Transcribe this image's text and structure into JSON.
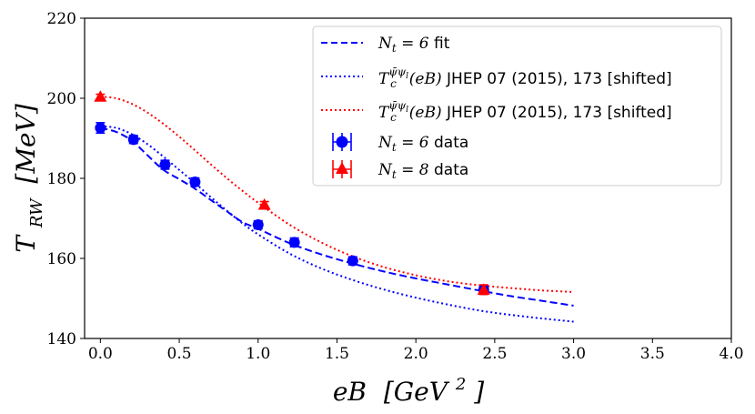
{
  "chart_data": {
    "type": "line",
    "title": "",
    "xlabel": "eB [GeV²]",
    "ylabel": "T_RW [MeV]",
    "xlim": [
      -0.1,
      4.0
    ],
    "ylim": [
      140,
      220
    ],
    "xticks": [
      0.0,
      0.5,
      1.0,
      1.5,
      2.0,
      2.5,
      3.0,
      3.5,
      4.0
    ],
    "xtick_labels": [
      "0.0",
      "0.5",
      "1.0",
      "1.5",
      "2.0",
      "2.5",
      "3.0",
      "3.5",
      "4.0"
    ],
    "yticks": [
      140,
      160,
      180,
      200,
      220
    ],
    "ytick_labels": [
      "140",
      "160",
      "180",
      "200",
      "220"
    ],
    "legend_position": "top-right",
    "series": [
      {
        "name": "Nt = 6 fit",
        "kind": "line",
        "style": "dashed",
        "color": "#0000ff",
        "x": [
          0.0,
          0.1,
          0.2,
          0.3,
          0.4,
          0.5,
          0.6,
          0.7,
          0.8,
          0.9,
          1.0,
          1.2,
          1.4,
          1.6,
          1.8,
          2.0,
          2.2,
          2.4,
          2.6,
          2.8,
          3.0
        ],
        "y": [
          192.6,
          191.6,
          189.4,
          185.7,
          182.1,
          179.8,
          177.4,
          174.6,
          171.8,
          169.1,
          167.4,
          163.8,
          161.0,
          158.7,
          156.7,
          155.0,
          153.5,
          152.0,
          150.6,
          149.4,
          148.2
        ]
      },
      {
        "name": "Tc(eB) JHEP 07 (2015), 173 [shifted]",
        "kind": "line",
        "style": "dotted",
        "color": "#0000ff",
        "x": [
          0.0,
          0.1,
          0.2,
          0.3,
          0.4,
          0.5,
          0.6,
          0.7,
          0.8,
          0.9,
          1.0,
          1.2,
          1.4,
          1.6,
          1.8,
          2.0,
          2.2,
          2.4,
          2.6,
          2.8,
          3.0
        ],
        "y": [
          193.0,
          192.6,
          191.0,
          188.5,
          185.4,
          182.1,
          178.8,
          175.3,
          172.0,
          168.8,
          166.0,
          161.2,
          157.5,
          154.6,
          152.2,
          150.2,
          148.5,
          147.0,
          145.9,
          145.0,
          144.2
        ]
      },
      {
        "name": "Tc(eB) JHEP 07 (2015), 173 [shifted]",
        "kind": "line",
        "style": "dotted",
        "color": "#ff0000",
        "x": [
          0.0,
          0.1,
          0.2,
          0.3,
          0.4,
          0.5,
          0.6,
          0.7,
          0.8,
          0.9,
          1.0,
          1.2,
          1.4,
          1.6,
          1.8,
          2.0,
          2.2,
          2.4,
          2.6,
          2.8,
          3.0
        ],
        "y": [
          200.4,
          200.0,
          198.6,
          196.4,
          193.6,
          190.4,
          187.0,
          183.5,
          180.1,
          176.9,
          173.9,
          168.4,
          164.0,
          160.5,
          157.8,
          155.8,
          154.3,
          153.3,
          152.6,
          152.0,
          151.6
        ]
      },
      {
        "name": "Nt = 6 data",
        "kind": "points",
        "marker": "circle",
        "color": "#0000ff",
        "x": [
          0.0,
          0.21,
          0.41,
          0.6,
          1.0,
          1.23,
          1.6,
          2.43
        ],
        "y": [
          192.6,
          189.7,
          183.4,
          179.1,
          168.4,
          164.0,
          159.4,
          152.2
        ],
        "yerr": [
          1.3,
          1.0,
          1.1,
          1.0,
          1.0,
          1.1,
          1.0,
          1.0
        ]
      },
      {
        "name": "Nt = 8 data",
        "kind": "points",
        "marker": "triangle",
        "color": "#ff0000",
        "x": [
          0.0,
          1.04,
          2.43
        ],
        "y": [
          200.4,
          173.4,
          152.2
        ],
        "yerr": [
          0.6,
          0.8,
          1.2
        ]
      }
    ]
  },
  "legend": {
    "items": [
      {
        "math_base": "N",
        "math_sub": "t",
        "math_rest": " = 6",
        "text": " fit"
      },
      {
        "math_base": "T",
        "math_sub": "c",
        "math_sup": "ψ̄ψ",
        "math_sup_sub": "l",
        "math_rest": "(eB)",
        "text": " JHEP 07 (2015), 173 [shifted]"
      },
      {
        "math_base": "T",
        "math_sub": "c",
        "math_sup": "ψ̄ψ",
        "math_sup_sub": "l",
        "math_rest": "(eB)",
        "text": " JHEP 07 (2015), 173 [shifted]"
      },
      {
        "math_base": "N",
        "math_sub": "t",
        "math_rest": " = 6",
        "text": " data"
      },
      {
        "math_base": "N",
        "math_sub": "t",
        "math_rest": " = 8",
        "text": " data"
      }
    ]
  },
  "axes": {
    "x_label_main": "eB",
    "x_label_unit_open": "[GeV",
    "x_label_unit_sup": "2",
    "x_label_unit_close": "]",
    "y_label_main": "T",
    "y_label_sub": "RW",
    "y_label_unit": "[MeV]"
  }
}
